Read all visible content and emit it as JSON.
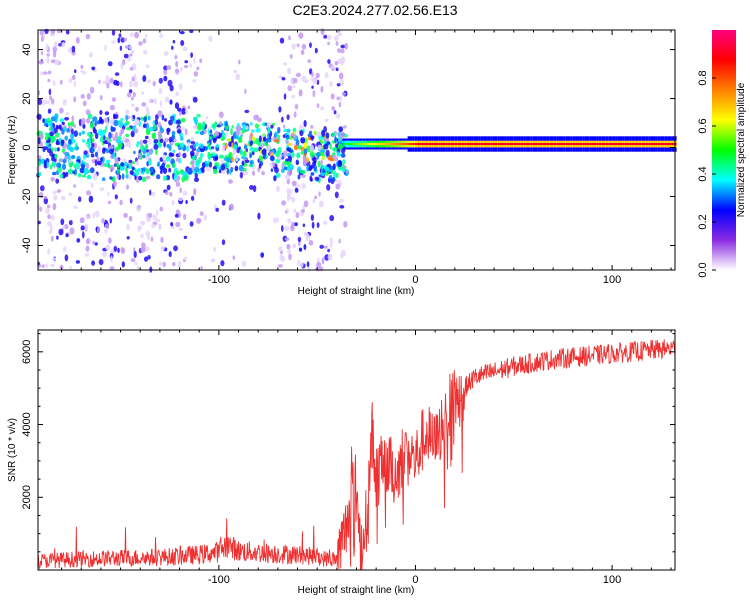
{
  "figure_title": "C2E3.2024.277.02.56.E13",
  "colors": {
    "snr_line": "#ee3030",
    "plot_border": "#000000",
    "spectrogram_background": "#ffffff"
  },
  "chart_data": [
    {
      "type": "heatmap",
      "title": "",
      "xlabel": "Height of straight line (km)",
      "ylabel": "Frequency (Hz)",
      "xlim": [
        -192,
        132
      ],
      "ylim": [
        -50,
        48
      ],
      "xticks": [
        -100,
        0,
        100
      ],
      "yticks": [
        -40,
        -20,
        0,
        20,
        40
      ],
      "grid": false,
      "colorbar": {
        "label": "Normalized spectral amplitude",
        "range": [
          0,
          1
        ],
        "ticks": [
          0.0,
          0.2,
          0.4,
          0.6,
          0.8
        ],
        "colormap": [
          "#ffffff",
          "#8a2be2",
          "#0000ff",
          "#00ffff",
          "#00ff00",
          "#ffff00",
          "#ff8000",
          "#ff0000",
          "#ff0080"
        ]
      },
      "features": {
        "noise_region_x": [
          -192,
          -40
        ],
        "carrier_onset_x": -40,
        "carrier_frequency_hz": 1.5,
        "carrier_peak_amplitude": 0.9
      }
    },
    {
      "type": "line",
      "title": "",
      "xlabel": "Height of straight line (km)",
      "ylabel": "SNR (10 * v/v)",
      "xlim": [
        -192,
        132
      ],
      "ylim": [
        0,
        6600
      ],
      "xticks": [
        -100,
        0,
        100
      ],
      "yticks": [
        2000,
        4000,
        6000
      ],
      "grid": false,
      "series": [
        {
          "x": [
            -192,
            -170,
            -150,
            -130,
            -110,
            -100,
            -96,
            -90,
            -80,
            -70,
            -60,
            -50,
            -45,
            -40,
            -35,
            -32,
            -30,
            -28,
            -25,
            -22,
            -20,
            -15,
            -10,
            -5,
            0,
            5,
            10,
            15,
            20,
            25,
            30,
            40,
            50,
            60,
            70,
            80,
            90,
            100,
            110,
            120,
            132
          ],
          "y": [
            250,
            300,
            330,
            350,
            420,
            500,
            700,
            520,
            480,
            450,
            420,
            360,
            300,
            300,
            1200,
            2800,
            2200,
            500,
            1400,
            3800,
            2600,
            3000,
            2600,
            3400,
            3000,
            3800,
            3400,
            4300,
            4700,
            5000,
            5300,
            5450,
            5600,
            5700,
            5800,
            5850,
            5900,
            5950,
            6000,
            6050,
            6100
          ]
        }
      ]
    }
  ]
}
